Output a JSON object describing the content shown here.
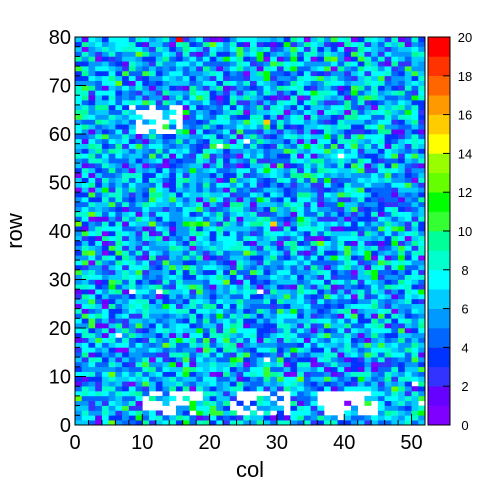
{
  "chart_data": {
    "type": "heatmap",
    "title": "",
    "xlabel": "col",
    "ylabel": "row",
    "x_range": [
      0,
      52
    ],
    "y_range": [
      0,
      80
    ],
    "z_range": [
      0,
      20
    ],
    "x_bins": 52,
    "y_bins": 80,
    "x_ticks": [
      "0",
      "10",
      "20",
      "30",
      "40",
      "50"
    ],
    "y_ticks": [
      "0",
      "10",
      "20",
      "30",
      "40",
      "50",
      "60",
      "70",
      "80"
    ],
    "z_ticks": [
      "0",
      "2",
      "4",
      "6",
      "8",
      "10",
      "12",
      "14",
      "16",
      "18",
      "20"
    ],
    "typical_value": 6,
    "empty_regions": [
      {
        "col_range": [
          8,
          16
        ],
        "row_range": [
          60,
          66
        ]
      },
      {
        "col_range": [
          10,
          19
        ],
        "row_range": [
          2,
          7
        ]
      },
      {
        "col_range": [
          23,
          32
        ],
        "row_range": [
          2,
          7
        ]
      },
      {
        "col_range": [
          36,
          45
        ],
        "row_range": [
          2,
          7
        ]
      }
    ],
    "hot_bins": [
      {
        "col": 28,
        "row": 62,
        "value": 15
      },
      {
        "col": 29,
        "row": 41,
        "value": 15
      },
      {
        "col": 15,
        "row": 79,
        "value": 20
      }
    ],
    "palette": [
      "#8000ff",
      "#6600ff",
      "#3333ff",
      "#0033ff",
      "#0066ff",
      "#0099ff",
      "#00ccff",
      "#00ffff",
      "#00ffcc",
      "#00ff99",
      "#33ff33",
      "#00ff00",
      "#66ff00",
      "#99ff00",
      "#ffff00",
      "#ffcc00",
      "#ff9900",
      "#ff6600",
      "#ff3300",
      "#ff0000"
    ]
  }
}
